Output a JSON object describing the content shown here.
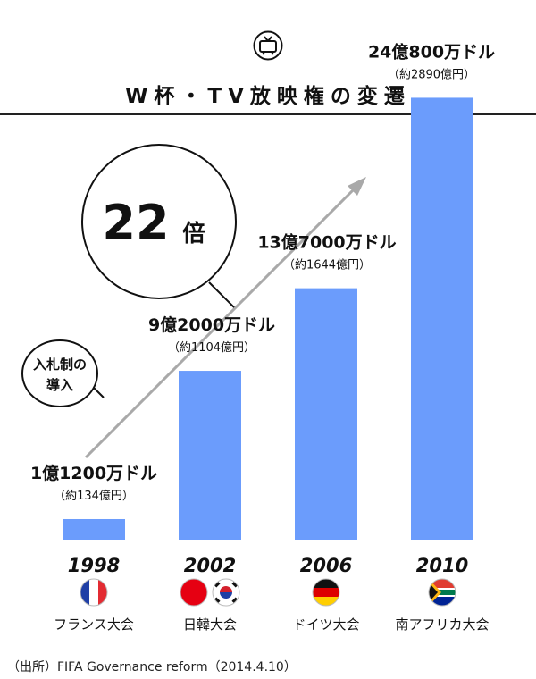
{
  "header": {
    "icon": "tv-icon",
    "title": "W杯・TV放映権の変遷"
  },
  "chart_data": {
    "type": "bar",
    "categories": [
      "1998",
      "2002",
      "2006",
      "2010"
    ],
    "values": [
      1.12,
      9.2,
      13.7,
      24.08
    ],
    "unit_note": "億ドル",
    "value_labels": [
      {
        "usd": "1億1200万ドル",
        "yen": "（約134億円）"
      },
      {
        "usd": "9億2000万ドル",
        "yen": "（約1104億円）"
      },
      {
        "usd": "13億7000万ドル",
        "yen": "（約1644億円）"
      },
      {
        "usd": "24億800万ドル",
        "yen": "（約2890億円）"
      }
    ],
    "hosts": [
      "フランス大会",
      "日韓大会",
      "ドイツ大会",
      "南アフリカ大会"
    ],
    "flags": [
      [
        "france"
      ],
      [
        "japan",
        "korea"
      ],
      [
        "germany"
      ],
      [
        "south-africa"
      ]
    ],
    "ylim": [
      0,
      26
    ],
    "bar_color": "#6b9cfc",
    "annotations": {
      "growth": "22倍",
      "auction": [
        "入札制の",
        "導入"
      ]
    },
    "title": "",
    "xlabel": "",
    "ylabel": ""
  },
  "footer": {
    "source": "（出所）FIFA Governance reform（2014.4.10）"
  }
}
